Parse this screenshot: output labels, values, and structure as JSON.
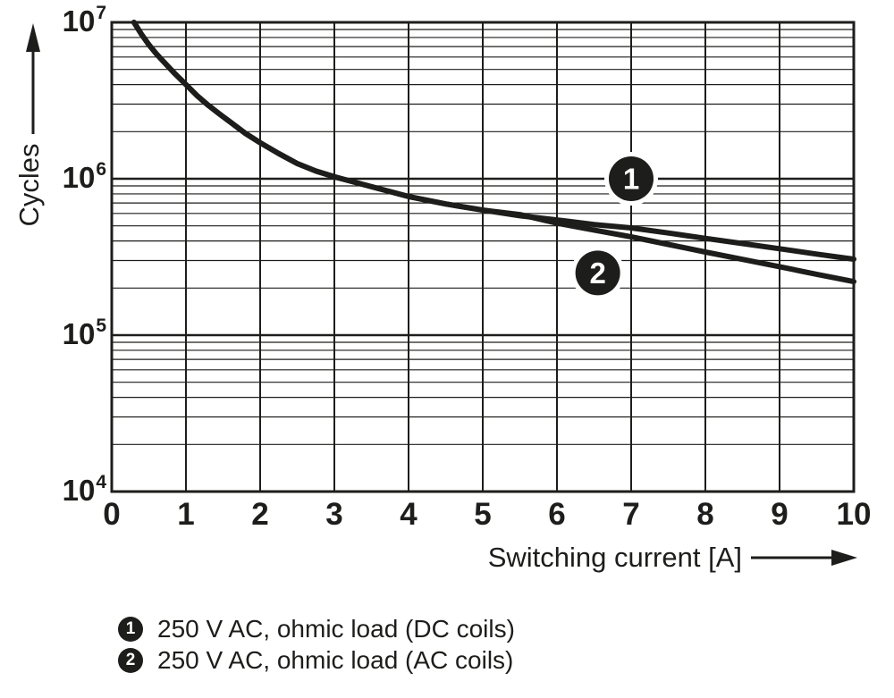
{
  "figure": {
    "background": "#ffffff",
    "ink_color": "#1d1d1b"
  },
  "chart_data": {
    "type": "line",
    "title": "",
    "xlabel": "Switching current [A]",
    "ylabel": "Cycles",
    "x_axis": {
      "min": 0,
      "max": 10,
      "scale": "linear",
      "ticks": [
        0,
        1,
        2,
        3,
        4,
        5,
        6,
        7,
        8,
        9,
        10
      ]
    },
    "y_axis": {
      "min": 10000,
      "max": 10000000,
      "scale": "log",
      "ticks": [
        {
          "label": "10",
          "exponent": "7",
          "value": 10000000
        },
        {
          "label": "10",
          "exponent": "6",
          "value": 1000000
        },
        {
          "label": "10",
          "exponent": "5",
          "value": 100000
        },
        {
          "label": "10",
          "exponent": "4",
          "value": 10000
        }
      ]
    },
    "grid": {
      "vertical_lines_every_A": 1,
      "horizontal": "log decades with minor lines 2-9",
      "legend_position": "below plot"
    },
    "x": [
      0.3,
      0.4,
      0.5,
      0.6,
      0.7,
      0.85,
      1,
      1.15,
      1.3,
      1.45,
      1.6,
      1.8,
      2,
      2.25,
      2.5,
      2.75,
      3,
      3.5,
      4,
      4.5,
      5,
      5.5,
      6,
      6.5,
      7,
      7.5,
      8,
      8.5,
      9,
      9.5,
      10
    ],
    "series": [
      {
        "id": "1",
        "name": "250 V AC, ohmic load (DC coils)",
        "cycles": [
          10000000,
          8400000,
          7200000,
          6300000,
          5600000,
          4700000,
          4000000,
          3400000,
          2950000,
          2600000,
          2300000,
          1950000,
          1700000,
          1450000,
          1250000,
          1120000,
          1030000,
          890000,
          770000,
          690000,
          630000,
          580000,
          545000,
          510000,
          485000,
          450000,
          416000,
          385000,
          357000,
          330000,
          306000
        ]
      },
      {
        "id": "2",
        "name": "250 V AC, ohmic load (AC coils)",
        "cycles": [
          10000000,
          8400000,
          7200000,
          6300000,
          5600000,
          4700000,
          4000000,
          3400000,
          2950000,
          2600000,
          2300000,
          1950000,
          1700000,
          1450000,
          1250000,
          1120000,
          1030000,
          890000,
          770000,
          690000,
          630000,
          590000,
          520000,
          470000,
          425000,
          380000,
          340000,
          305000,
          274000,
          245000,
          220000
        ]
      }
    ],
    "curve_markers": [
      {
        "label": "1",
        "x": 7.0,
        "cycles": 1000000
      },
      {
        "label": "2",
        "x": 6.55,
        "cycles": 250000
      }
    ]
  },
  "legend": {
    "items": [
      {
        "marker": "1",
        "label": "250 V AC, ohmic load (DC coils)"
      },
      {
        "marker": "2",
        "label": "250 V AC, ohmic load (AC coils)"
      }
    ]
  }
}
